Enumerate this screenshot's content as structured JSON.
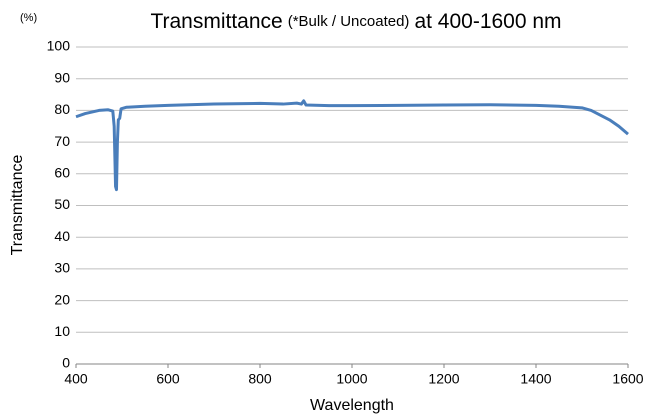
{
  "chart_data": {
    "type": "line",
    "title": [
      "Transmittance",
      "(*Bulk / Uncoated)",
      "at 400-1600 nm"
    ],
    "y_unit": "(%)",
    "x_label": "Wavelength",
    "y_label": "Transmittance",
    "x": [
      400,
      420,
      450,
      470,
      480,
      483,
      486,
      488,
      490,
      492,
      495,
      498,
      510,
      550,
      600,
      700,
      800,
      850,
      880,
      890,
      895,
      900,
      950,
      1000,
      1100,
      1200,
      1300,
      1400,
      1450,
      1500,
      1520,
      1540,
      1560,
      1580,
      1600
    ],
    "values": [
      78,
      79,
      80,
      80.2,
      79.8,
      75,
      56,
      55,
      70,
      77,
      77.5,
      80.5,
      81,
      81.3,
      81.6,
      82,
      82.2,
      82,
      82.3,
      82,
      83,
      81.7,
      81.5,
      81.5,
      81.6,
      81.7,
      81.8,
      81.6,
      81.3,
      80.8,
      80,
      78.5,
      77,
      75,
      72.5
    ],
    "color": "#4a7ebb",
    "xlim": [
      400,
      1600
    ],
    "xticks": [
      400,
      600,
      800,
      1000,
      1200,
      1400,
      1600
    ],
    "ylim": [
      0,
      100
    ],
    "yticks": [
      0,
      10,
      20,
      30,
      40,
      50,
      60,
      70,
      80,
      90,
      100
    ],
    "grid": true
  }
}
